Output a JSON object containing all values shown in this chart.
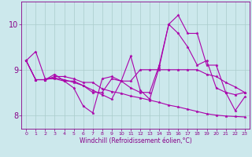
{
  "xlabel": "Windchill (Refroidissement éolien,°C)",
  "background_color": "#cce8ec",
  "grid_color": "#aacccc",
  "line_color": "#aa00aa",
  "xlim": [
    -0.5,
    23.5
  ],
  "ylim": [
    7.7,
    10.5
  ],
  "yticks": [
    8,
    9,
    10
  ],
  "xticks": [
    0,
    1,
    2,
    3,
    4,
    5,
    6,
    7,
    8,
    9,
    10,
    11,
    12,
    13,
    14,
    15,
    16,
    17,
    18,
    19,
    20,
    21,
    22,
    23
  ],
  "series": [
    [
      9.2,
      9.4,
      8.8,
      8.8,
      8.75,
      8.6,
      8.2,
      8.05,
      8.8,
      8.85,
      8.75,
      9.3,
      8.55,
      8.35,
      9.05,
      10.0,
      10.2,
      9.8,
      9.8,
      9.1,
      9.1,
      8.5,
      8.45,
      8.5
    ],
    [
      9.2,
      8.78,
      8.78,
      8.82,
      8.78,
      8.72,
      8.65,
      8.55,
      8.45,
      8.35,
      8.75,
      8.75,
      9.0,
      9.0,
      9.0,
      9.0,
      9.0,
      9.0,
      9.0,
      8.9,
      8.85,
      8.72,
      8.62,
      8.5
    ],
    [
      9.2,
      8.78,
      8.78,
      8.85,
      8.85,
      8.8,
      8.72,
      8.72,
      8.58,
      8.52,
      8.48,
      8.42,
      8.38,
      8.33,
      8.28,
      8.22,
      8.18,
      8.13,
      8.08,
      8.03,
      8.0,
      7.98,
      7.97,
      7.96
    ],
    [
      9.2,
      8.78,
      8.78,
      8.9,
      8.75,
      8.75,
      8.65,
      8.5,
      8.5,
      8.8,
      8.75,
      8.6,
      8.5,
      8.5,
      9.1,
      10.0,
      9.8,
      9.5,
      9.1,
      9.2,
      8.6,
      8.5,
      8.1,
      8.4
    ]
  ]
}
